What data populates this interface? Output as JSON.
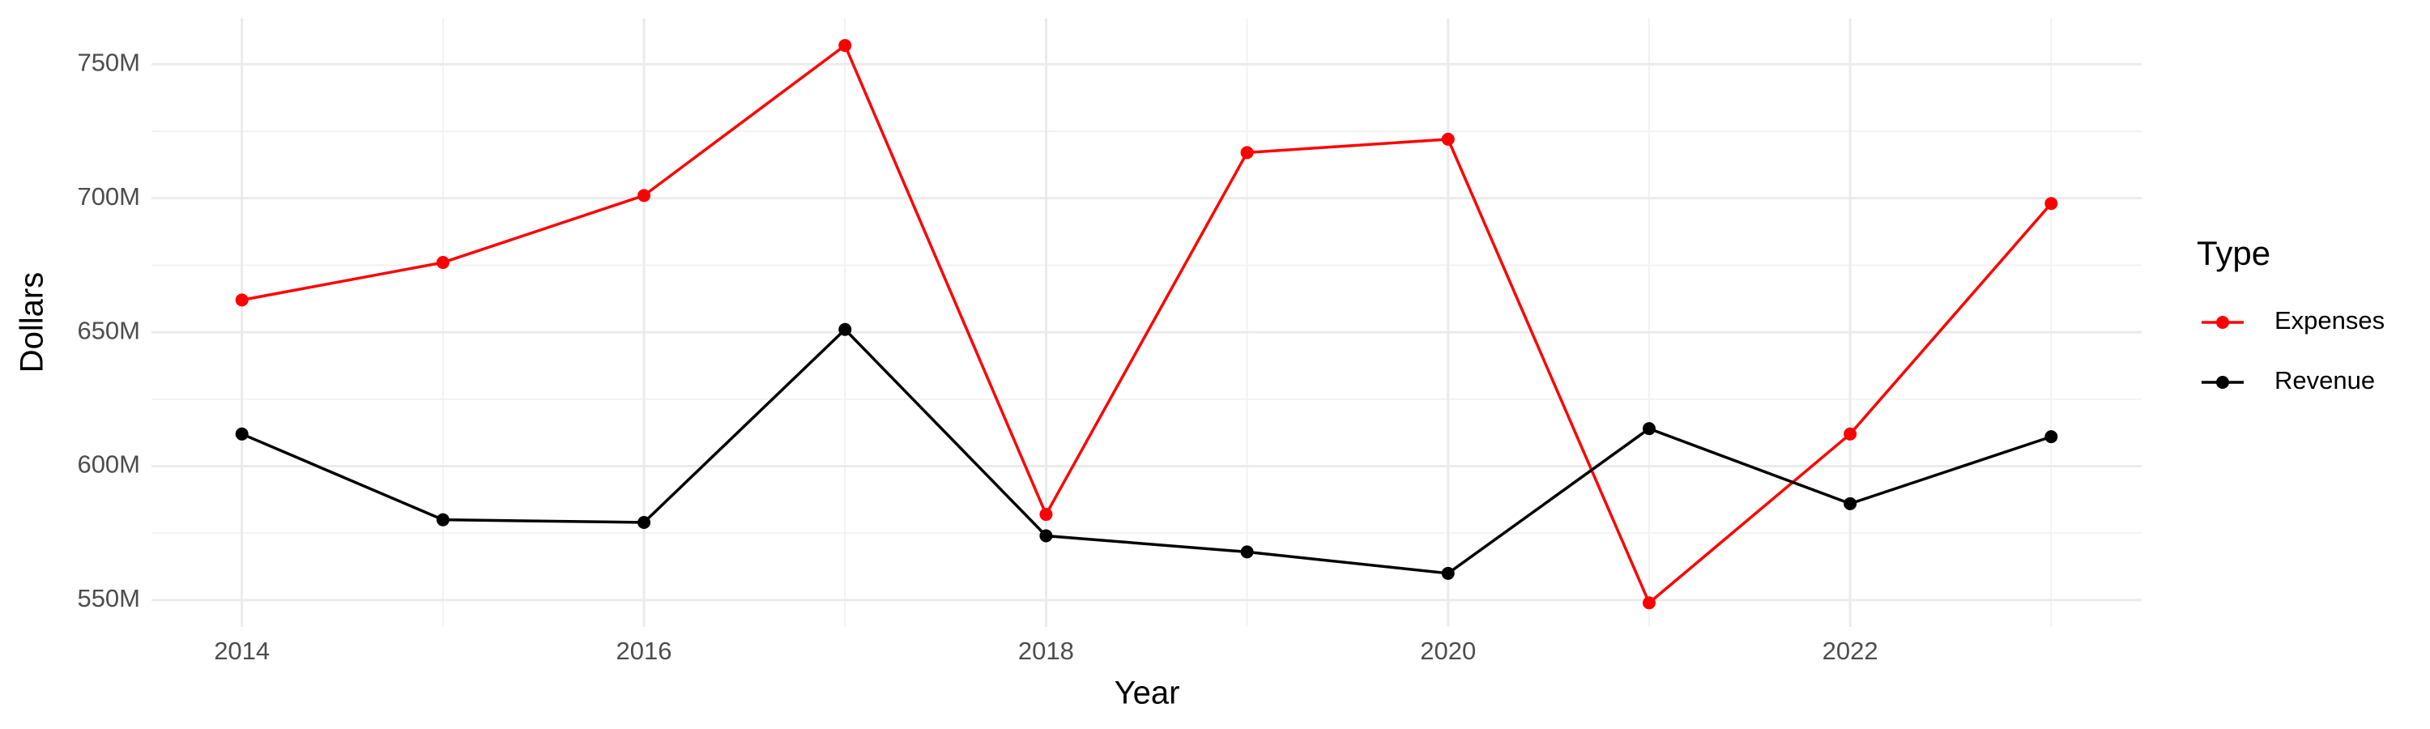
{
  "chart_data": {
    "type": "line",
    "x_label": "Year",
    "y_label": "Dollars",
    "legend_title": "Type",
    "x": [
      2014,
      2015,
      2016,
      2017,
      2018,
      2019,
      2020,
      2021,
      2022,
      2023
    ],
    "series": [
      {
        "name": "Expenses",
        "color": "#ff0000",
        "values": [
          662000000,
          676000000,
          701000000,
          757000000,
          582000000,
          717000000,
          722000000,
          549000000,
          612000000,
          698000000
        ]
      },
      {
        "name": "Revenue",
        "color": "#000000",
        "values": [
          612000000,
          580000000,
          579000000,
          651000000,
          574000000,
          568000000,
          560000000,
          614000000,
          586000000,
          611000000
        ]
      }
    ],
    "xlim": [
      2013.55,
      2023.45
    ],
    "xticks": [
      2014,
      2016,
      2018,
      2020,
      2022
    ],
    "ylim": [
      540000000,
      767000000
    ],
    "yticks": [
      {
        "value": 550000000,
        "label": "550M"
      },
      {
        "value": 600000000,
        "label": "600M"
      },
      {
        "value": 650000000,
        "label": "650M"
      },
      {
        "value": 700000000,
        "label": "700M"
      },
      {
        "value": 750000000,
        "label": "750M"
      }
    ],
    "grid": true,
    "legend": "right"
  }
}
